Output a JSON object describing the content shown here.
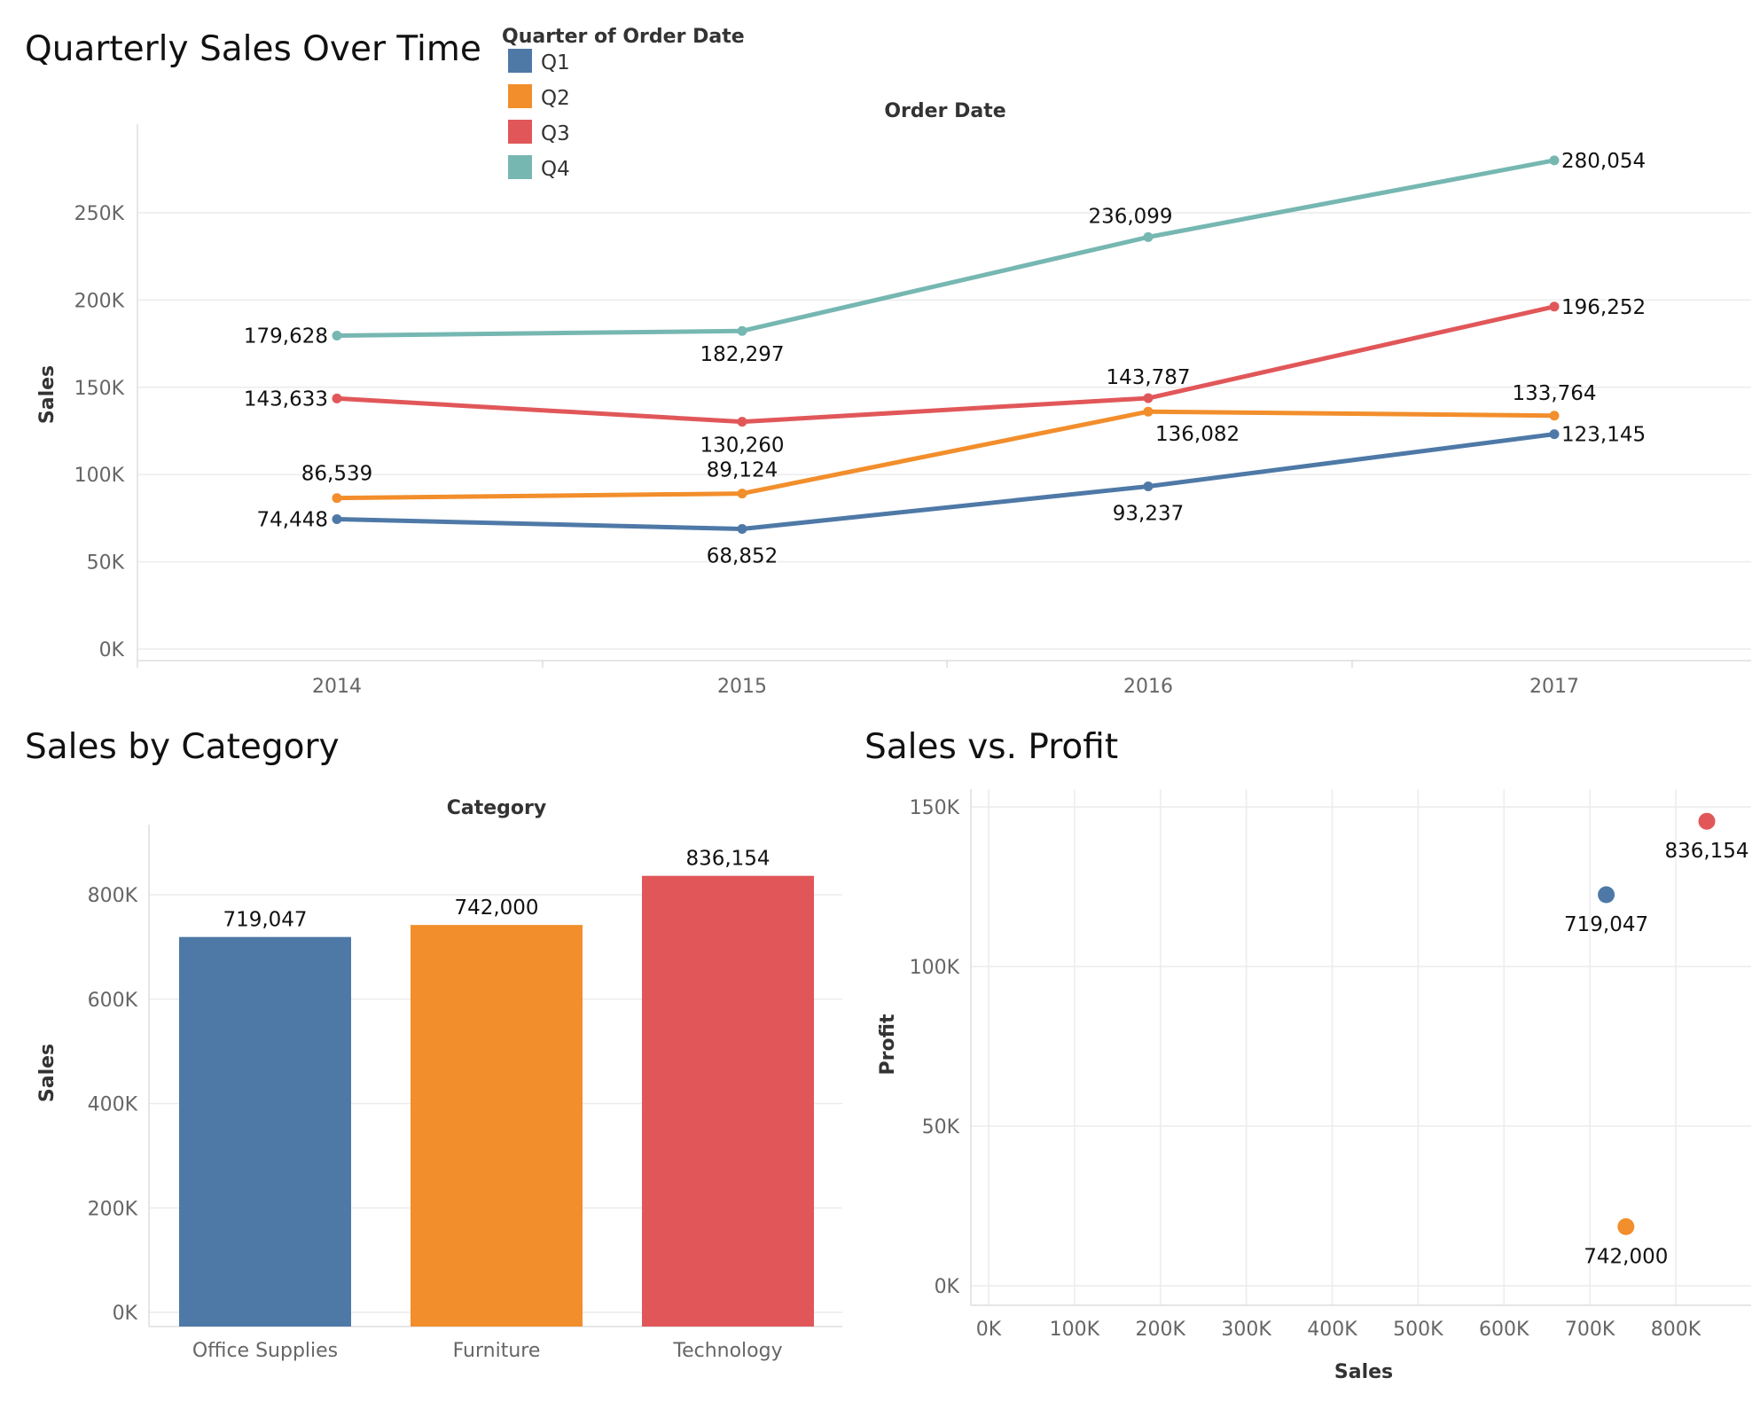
{
  "line_chart": {
    "title": "Quarterly Sales Over Time",
    "legend_title": "Quarter of Order Date",
    "x_title": "Order Date",
    "y_title": "Sales"
  },
  "bar_chart": {
    "title": "Sales by Category",
    "x_title": "Category",
    "y_title": "Sales"
  },
  "scatter_chart": {
    "title": "Sales vs. Profit",
    "x_title": "Sales",
    "y_title": "Profit"
  },
  "chart_data": [
    {
      "type": "line",
      "title": "Quarterly Sales Over Time",
      "xlabel": "Order Date",
      "ylabel": "Sales",
      "x": [
        "2014",
        "2015",
        "2016",
        "2017"
      ],
      "ylim": [
        0,
        290000
      ],
      "yticks": [
        0,
        50000,
        100000,
        150000,
        200000,
        250000
      ],
      "ytick_labels": [
        "0K",
        "50K",
        "100K",
        "150K",
        "200K",
        "250K"
      ],
      "legend_title": "Quarter of Order Date",
      "legend_position": "top-left",
      "grid": true,
      "series": [
        {
          "name": "Q1",
          "color": "#4e79a7",
          "values": [
            74448,
            68852,
            93237,
            123145
          ],
          "labels": [
            "74,448",
            "68,852",
            "93,237",
            "123,145"
          ]
        },
        {
          "name": "Q2",
          "color": "#f28e2b",
          "values": [
            86539,
            89124,
            136082,
            133764
          ],
          "labels": [
            "86,539",
            "89,124",
            "136,082",
            "133,764"
          ]
        },
        {
          "name": "Q3",
          "color": "#e15759",
          "values": [
            143633,
            130260,
            143787,
            196252
          ],
          "labels": [
            "143,633",
            "130,260",
            "143,787",
            "196,252"
          ]
        },
        {
          "name": "Q4",
          "color": "#76b7b2",
          "values": [
            179628,
            182297,
            236099,
            280054
          ],
          "labels": [
            "179,628",
            "182,297",
            "236,099",
            "280,054"
          ]
        }
      ]
    },
    {
      "type": "bar",
      "title": "Sales by Category",
      "xlabel": "Category",
      "ylabel": "Sales",
      "categories": [
        "Office Supplies",
        "Furniture",
        "Technology"
      ],
      "values": [
        719047,
        742000,
        836154
      ],
      "labels": [
        "719,047",
        "742,000",
        "836,154"
      ],
      "colors": [
        "#4e79a7",
        "#f28e2b",
        "#e15759"
      ],
      "ylim": [
        0,
        940000
      ],
      "yticks": [
        0,
        200000,
        400000,
        600000,
        800000
      ],
      "ytick_labels": [
        "0K",
        "200K",
        "400K",
        "600K",
        "800K"
      ],
      "grid": true
    },
    {
      "type": "scatter",
      "title": "Sales vs. Profit",
      "xlabel": "Sales",
      "ylabel": "Profit",
      "xlim": [
        0,
        900000
      ],
      "ylim": [
        0,
        153000
      ],
      "xticks": [
        0,
        100000,
        200000,
        300000,
        400000,
        500000,
        600000,
        700000,
        800000
      ],
      "xtick_labels": [
        "0K",
        "100K",
        "200K",
        "300K",
        "400K",
        "500K",
        "600K",
        "700K",
        "800K"
      ],
      "yticks": [
        0,
        50000,
        100000,
        150000
      ],
      "ytick_labels": [
        "0K",
        "50K",
        "100K",
        "150K"
      ],
      "grid": true,
      "points": [
        {
          "x": 719047,
          "y": 122500,
          "label": "719,047",
          "color": "#4e79a7"
        },
        {
          "x": 742000,
          "y": 18500,
          "label": "742,000",
          "color": "#f28e2b"
        },
        {
          "x": 836154,
          "y": 145500,
          "label": "836,154",
          "color": "#e15759"
        }
      ]
    }
  ]
}
